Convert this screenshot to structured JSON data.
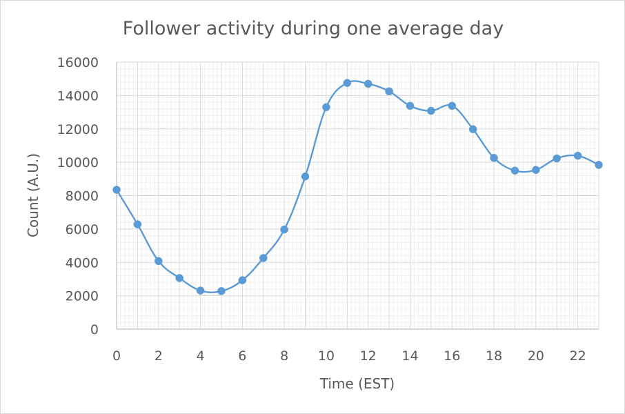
{
  "chart_data": {
    "type": "line",
    "title": "Follower activity during one average day",
    "xlabel": "Time (EST)",
    "ylabel": "Count (A.U.)",
    "xlim": [
      0,
      23
    ],
    "ylim": [
      0,
      16000
    ],
    "x_ticks": [
      0,
      2,
      4,
      6,
      8,
      10,
      12,
      14,
      16,
      18,
      20,
      22
    ],
    "y_ticks": [
      0,
      2000,
      4000,
      6000,
      8000,
      10000,
      12000,
      14000,
      16000
    ],
    "grid": "major and minor",
    "legend": "none",
    "series": [
      {
        "color": "#5b9bd5",
        "x": [
          0,
          1,
          2,
          3,
          4,
          5,
          6,
          7,
          8,
          9,
          10,
          11,
          12,
          13,
          14,
          15,
          16,
          17,
          18,
          19,
          20,
          21,
          22,
          23
        ],
        "y": [
          8350,
          6280,
          4080,
          3060,
          2310,
          2280,
          2930,
          4260,
          5970,
          9150,
          13300,
          14750,
          14700,
          14250,
          13380,
          13080,
          13380,
          11980,
          10260,
          9500,
          9540,
          10230,
          10390,
          9840
        ]
      }
    ]
  }
}
